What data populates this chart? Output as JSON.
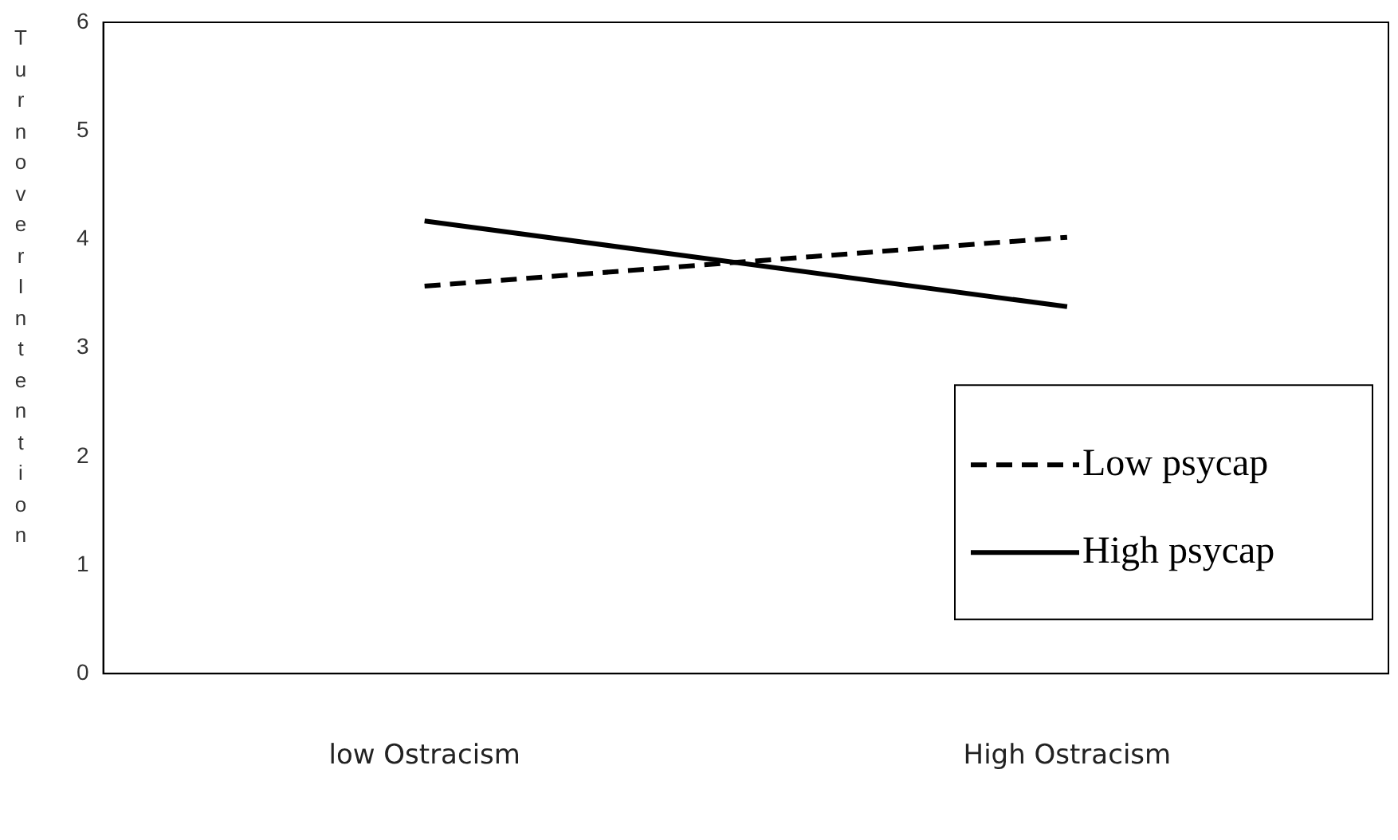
{
  "chart_data": {
    "type": "line",
    "ylabel": "Turnover Intention",
    "categories": [
      "low Ostracism",
      "High Ostracism"
    ],
    "series": [
      {
        "name": "Low psycap",
        "color": "#000000",
        "values": [
          3.57,
          4.02
        ],
        "line_style": "dashed"
      },
      {
        "name": "High psycap",
        "color": "#000000",
        "values": [
          4.17,
          3.38
        ],
        "line_style": "solid"
      }
    ],
    "ylim": [
      0,
      6
    ],
    "yticks": [
      0,
      1,
      2,
      3,
      4,
      5,
      6
    ],
    "grid": false,
    "legend": "bottom right",
    "marker": "none"
  }
}
